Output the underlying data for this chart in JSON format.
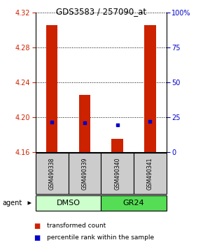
{
  "title": "GDS3583 / 257090_at",
  "samples": [
    "GSM490338",
    "GSM490339",
    "GSM490340",
    "GSM490341"
  ],
  "bar_bottom": 4.16,
  "bar_tops": [
    4.305,
    4.225,
    4.175,
    4.305
  ],
  "blue_y": [
    4.194,
    4.193,
    4.191,
    4.195
  ],
  "ylim": [
    4.16,
    4.32
  ],
  "y2lim": [
    0,
    100
  ],
  "yticks": [
    4.16,
    4.2,
    4.24,
    4.28,
    4.32
  ],
  "y2ticks": [
    0,
    25,
    50,
    75,
    100
  ],
  "y2ticklabels": [
    "0",
    "25",
    "50",
    "75",
    "100%"
  ],
  "bar_color": "#cc2200",
  "dot_color": "#0000cc",
  "label_color_left": "#cc2200",
  "label_color_right": "#0000cc",
  "dmso_color": "#ccffcc",
  "gr24_color": "#55dd55",
  "sample_box_color": "#cccccc",
  "legend_red_label": "transformed count",
  "legend_blue_label": "percentile rank within the sample",
  "bar_width": 0.35
}
